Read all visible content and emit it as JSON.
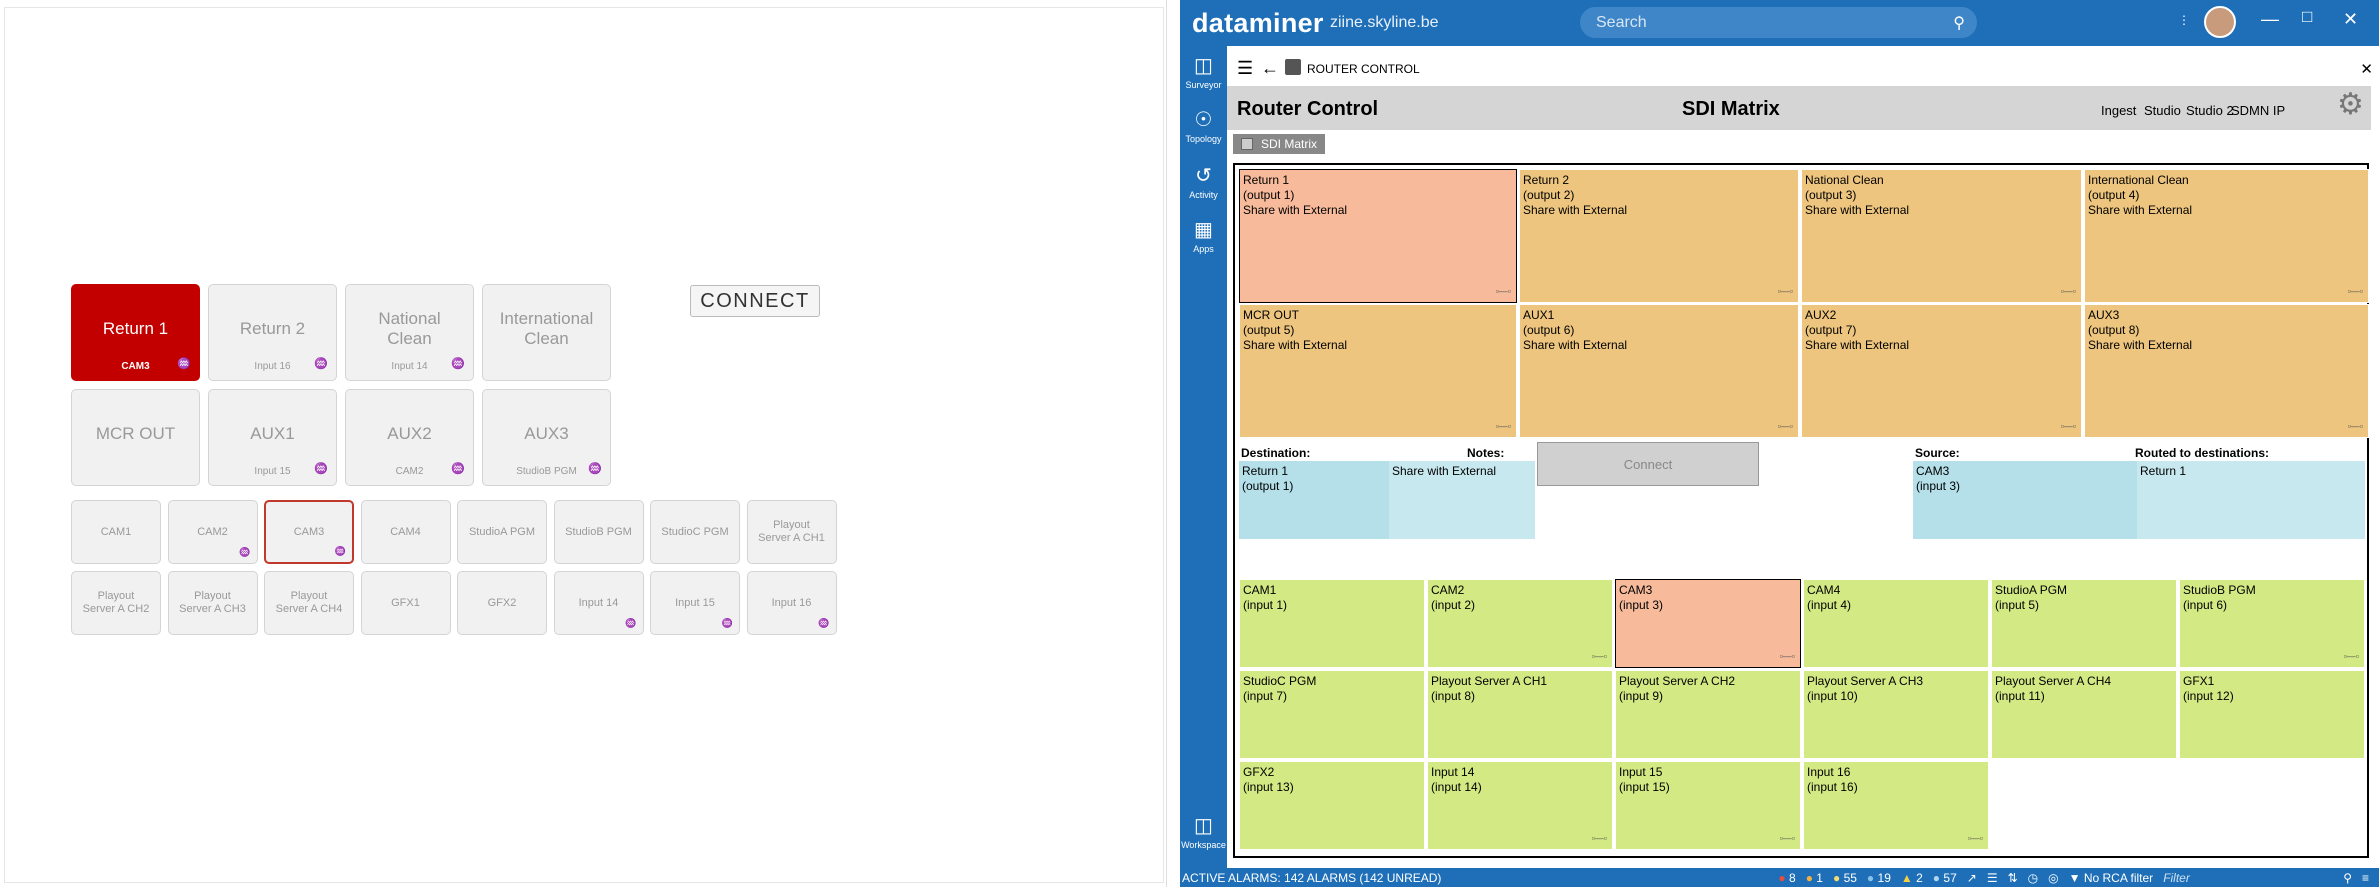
{
  "left_panel": {
    "destinations": [
      {
        "label": "Return 1",
        "sub": "CAM3",
        "active": true,
        "lock": true
      },
      {
        "label": "Return 2",
        "sub": "Input 16",
        "active": false,
        "lock": true
      },
      {
        "label": "National Clean",
        "sub": "Input 14",
        "active": false,
        "lock": true
      },
      {
        "label": "International Clean",
        "sub": "",
        "active": false,
        "lock": false
      },
      {
        "label": "MCR OUT",
        "sub": "",
        "active": false,
        "lock": false
      },
      {
        "label": "AUX1",
        "sub": "Input 15",
        "active": false,
        "lock": true
      },
      {
        "label": "AUX2",
        "sub": "CAM2",
        "active": false,
        "lock": true
      },
      {
        "label": "AUX3",
        "sub": "StudioB PGM",
        "active": false,
        "lock": true
      }
    ],
    "connect_label": "CONNECT",
    "sources": [
      {
        "label": "CAM1",
        "lock": false,
        "selected": false
      },
      {
        "label": "CAM2",
        "lock": true,
        "selected": false
      },
      {
        "label": "CAM3",
        "lock": true,
        "selected": true
      },
      {
        "label": "CAM4",
        "lock": false,
        "selected": false
      },
      {
        "label": "StudioA PGM",
        "lock": false,
        "selected": false
      },
      {
        "label": "StudioB PGM",
        "lock": false,
        "selected": false
      },
      {
        "label": "StudioC PGM",
        "lock": false,
        "selected": false
      },
      {
        "label": "Playout Server A CH1",
        "lock": false,
        "selected": false
      },
      {
        "label": "Playout Server A CH2",
        "lock": false,
        "selected": false
      },
      {
        "label": "Playout Server A CH3",
        "lock": false,
        "selected": false
      },
      {
        "label": "Playout Server A CH4",
        "lock": false,
        "selected": false
      },
      {
        "label": "GFX1",
        "lock": false,
        "selected": false
      },
      {
        "label": "GFX2",
        "lock": false,
        "selected": false
      },
      {
        "label": "Input 14",
        "lock": true,
        "selected": false
      },
      {
        "label": "Input 15",
        "lock": true,
        "selected": false
      },
      {
        "label": "Input 16",
        "lock": true,
        "selected": false
      }
    ]
  },
  "app": {
    "brand": "dataminer",
    "host": "ziine.skyline.be",
    "search_placeholder": "Search",
    "nav": [
      {
        "label": "Surveyor",
        "icon": "surveyor-icon"
      },
      {
        "label": "Topology",
        "icon": "topology-icon"
      },
      {
        "label": "Activity",
        "icon": "activity-icon"
      },
      {
        "label": "Apps",
        "icon": "apps-icon"
      },
      {
        "label": "Workspace",
        "icon": "workspace-icon"
      }
    ],
    "app_title": "ROUTER CONTROL",
    "page_title": "Router Control",
    "matrix_title": "SDI Matrix",
    "page_links": [
      "Ingest",
      "Studio",
      "Studio 2",
      "SDMN IP"
    ],
    "tab_label": "SDI Matrix"
  },
  "matrix": {
    "outputs": [
      {
        "name": "Return 1",
        "port": "(output 1)",
        "note": "Share with External",
        "selected": true
      },
      {
        "name": "Return 2",
        "port": "(output 2)",
        "note": "Share with External",
        "selected": false
      },
      {
        "name": "National Clean",
        "port": "(output 3)",
        "note": "Share with External",
        "selected": false
      },
      {
        "name": "International Clean",
        "port": "(output 4)",
        "note": "Share with External",
        "selected": false
      },
      {
        "name": "MCR OUT",
        "port": "(output 5)",
        "note": "Share with External",
        "selected": false
      },
      {
        "name": "AUX1",
        "port": "(output 6)",
        "note": "Share with External",
        "selected": false
      },
      {
        "name": "AUX2",
        "port": "(output 7)",
        "note": "Share with External",
        "selected": false
      },
      {
        "name": "AUX3",
        "port": "(output 8)",
        "note": "Share with External",
        "selected": false
      }
    ],
    "details": {
      "destination_label": "Destination:",
      "destination_name": "Return 1",
      "destination_port": "(output 1)",
      "notes_label": "Notes:",
      "notes_value": "Share with External",
      "connect_label": "Connect",
      "source_label": "Source:",
      "source_name": "CAM3",
      "source_port": "(input 3)",
      "routed_label": "Routed to destinations:",
      "routed_value": "Return 1"
    },
    "inputs": [
      {
        "name": "CAM1",
        "port": "(input 1)",
        "selected": false
      },
      {
        "name": "CAM2",
        "port": "(input 2)",
        "selected": false
      },
      {
        "name": "CAM3",
        "port": "(input 3)",
        "selected": true
      },
      {
        "name": "CAM4",
        "port": "(input 4)",
        "selected": false
      },
      {
        "name": "StudioA PGM",
        "port": "(input 5)",
        "selected": false
      },
      {
        "name": "StudioB PGM",
        "port": "(input 6)",
        "selected": false
      },
      {
        "name": "StudioC PGM",
        "port": "(input 7)",
        "selected": false
      },
      {
        "name": "Playout Server A CH1",
        "port": "(input 8)",
        "selected": false
      },
      {
        "name": "Playout Server A CH2",
        "port": "(input 9)",
        "selected": false
      },
      {
        "name": "Playout Server A CH3",
        "port": "(input 10)",
        "selected": false
      },
      {
        "name": "Playout Server A CH4",
        "port": "(input 11)",
        "selected": false
      },
      {
        "name": "GFX1",
        "port": "(input 12)",
        "selected": false
      },
      {
        "name": "GFX2",
        "port": "(input 13)",
        "selected": false
      },
      {
        "name": "Input 14",
        "port": "(input 14)",
        "selected": false
      },
      {
        "name": "Input 15",
        "port": "(input 15)",
        "selected": false
      },
      {
        "name": "Input 16",
        "port": "(input 16)",
        "selected": false
      }
    ]
  },
  "status": {
    "alarms": "ACTIVE ALARMS: 142 ALARMS (142 UNREAD)",
    "counts": [
      "8",
      "1",
      "55",
      "19",
      "2",
      "57"
    ],
    "rca": "No RCA filter",
    "filter": "Filter"
  },
  "colors": {
    "brand_blue": "#1e6fb8",
    "active_red": "#c30000",
    "output_tile": "#edc57f",
    "input_tile": "#d3e983",
    "selected_tile": "#f7bb9c",
    "detail_bg": "#b5e0ea"
  }
}
